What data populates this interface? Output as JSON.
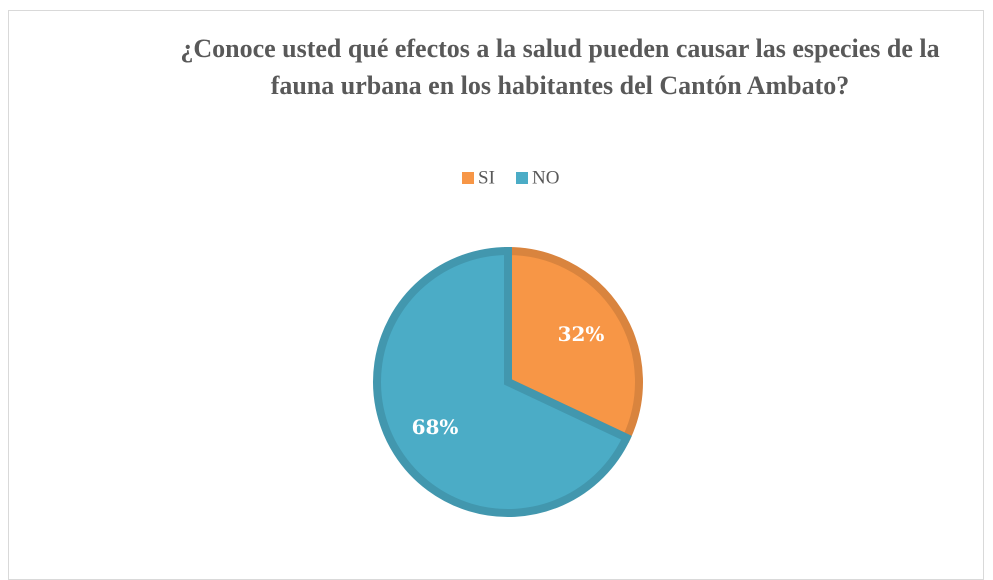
{
  "chart_data": {
    "type": "pie",
    "title": "¿Conoce usted qué efectos a la salud pueden causar las especies de la fauna urbana en los habitantes del Cantón Ambato?",
    "categories": [
      "SI",
      "NO"
    ],
    "values": [
      32,
      68
    ],
    "value_labels": [
      "32%",
      "68%"
    ],
    "colors": [
      "#f79646",
      "#4bacc6"
    ]
  }
}
